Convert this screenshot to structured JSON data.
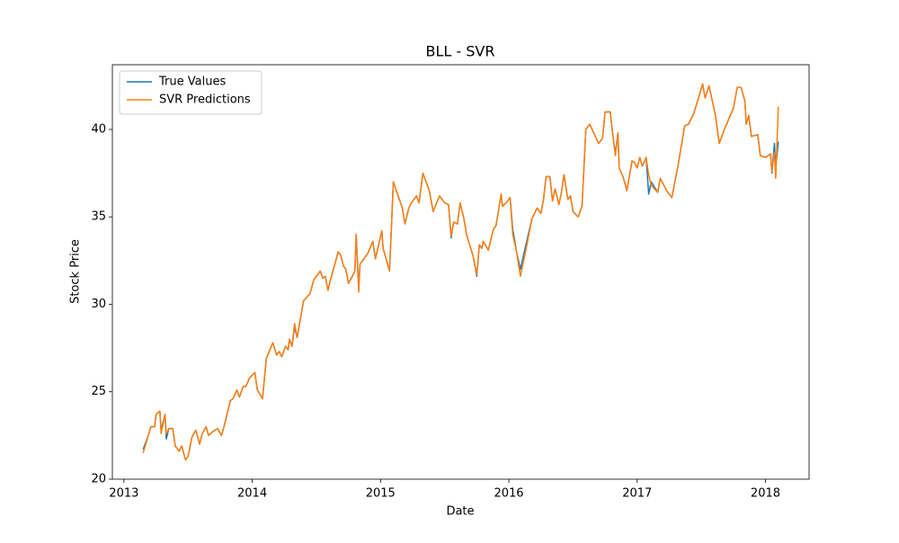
{
  "chart_data": {
    "type": "line",
    "title": "BLL - SVR",
    "x_label": "Date",
    "y_label": "Stock Price",
    "x": [
      2013.15,
      2013.19,
      2013.21,
      2013.24,
      2013.25,
      2013.28,
      2013.29,
      2013.32,
      2013.33,
      2013.35,
      2013.38,
      2013.4,
      2013.43,
      2013.45,
      2013.48,
      2013.5,
      2013.53,
      2013.56,
      2013.59,
      2013.61,
      2013.64,
      2013.66,
      2013.69,
      2013.73,
      2013.76,
      2013.78,
      2013.83,
      2013.85,
      2013.88,
      2013.9,
      2013.93,
      2013.95,
      2013.98,
      2014.02,
      2014.04,
      2014.08,
      2014.11,
      2014.16,
      2014.19,
      2014.21,
      2014.23,
      2014.26,
      2014.28,
      2014.29,
      2014.31,
      2014.33,
      2014.35,
      2014.4,
      2014.45,
      2014.48,
      2014.53,
      2014.55,
      2014.57,
      2014.59,
      2014.61,
      2014.67,
      2014.69,
      2014.71,
      2014.73,
      2014.75,
      2014.78,
      2014.8,
      2014.81,
      2014.83,
      2014.84,
      2014.9,
      2014.94,
      2014.96,
      2015.01,
      2015.02,
      2015.07,
      2015.1,
      2015.17,
      2015.19,
      2015.22,
      2015.24,
      2015.28,
      2015.3,
      2015.33,
      2015.38,
      2015.41,
      2015.46,
      2015.5,
      2015.53,
      2015.55,
      2015.57,
      2015.6,
      2015.62,
      2015.65,
      2015.67,
      2015.69,
      2015.72,
      2015.75,
      2015.77,
      2015.79,
      2015.8,
      2015.84,
      2015.88,
      2015.9,
      2015.94,
      2015.95,
      2015.99,
      2016.01,
      2016.03,
      2016.06,
      2016.09,
      2016.13,
      2016.18,
      2016.22,
      2016.25,
      2016.27,
      2016.29,
      2016.32,
      2016.34,
      2016.36,
      2016.39,
      2016.41,
      2016.43,
      2016.46,
      2016.48,
      2016.5,
      2016.54,
      2016.57,
      2016.6,
      2016.63,
      2016.7,
      2016.73,
      2016.75,
      2016.79,
      2016.81,
      2016.83,
      2016.85,
      2016.86,
      2016.89,
      2016.92,
      2016.96,
      2016.98,
      2017.0,
      2017.02,
      2017.04,
      2017.07,
      2017.09,
      2017.11,
      2017.16,
      2017.18,
      2017.23,
      2017.27,
      2017.32,
      2017.37,
      2017.4,
      2017.44,
      2017.47,
      2017.51,
      2017.53,
      2017.56,
      2017.61,
      2017.64,
      2017.68,
      2017.72,
      2017.75,
      2017.78,
      2017.81,
      2017.84,
      2017.85,
      2017.87,
      2017.89,
      2017.94,
      2017.96,
      2018.0,
      2018.04,
      2018.05,
      2018.07,
      2018.08,
      2018.1
    ],
    "series": [
      {
        "name": "True Values",
        "color": "#1f77b4",
        "values": [
          21.7,
          22.5,
          23.0,
          23.0,
          23.7,
          23.9,
          22.8,
          23.7,
          22.3,
          22.9,
          22.9,
          21.9,
          21.6,
          21.9,
          21.1,
          21.3,
          22.4,
          22.8,
          22.0,
          22.6,
          23.0,
          22.5,
          22.7,
          22.9,
          22.5,
          23.0,
          24.5,
          24.6,
          25.1,
          24.7,
          25.3,
          25.3,
          25.8,
          26.1,
          25.1,
          24.6,
          26.9,
          27.8,
          27.1,
          27.3,
          27.0,
          27.6,
          27.4,
          28.0,
          27.6,
          28.7,
          28.1,
          30.2,
          30.6,
          31.4,
          31.9,
          31.5,
          31.6,
          30.8,
          31.4,
          33.0,
          32.8,
          32.2,
          32.0,
          31.2,
          31.6,
          31.9,
          34.0,
          30.9,
          32.3,
          32.9,
          33.6,
          32.6,
          34.2,
          33.2,
          31.9,
          37.0,
          35.5,
          34.6,
          35.5,
          35.8,
          36.2,
          35.8,
          37.5,
          36.5,
          35.3,
          36.2,
          35.8,
          35.7,
          33.8,
          34.7,
          34.6,
          35.8,
          34.9,
          34.0,
          33.5,
          32.8,
          31.6,
          33.4,
          33.2,
          33.6,
          33.1,
          34.3,
          34.5,
          36.3,
          35.6,
          35.9,
          36.1,
          34.3,
          33.0,
          32.0,
          33.3,
          34.9,
          35.5,
          35.2,
          36.0,
          37.3,
          37.3,
          35.9,
          36.6,
          35.7,
          36.4,
          37.4,
          36.0,
          36.2,
          35.3,
          35.0,
          35.6,
          40.0,
          40.3,
          39.2,
          39.5,
          41.0,
          41.0,
          39.7,
          38.6,
          39.8,
          37.8,
          37.3,
          36.5,
          38.2,
          38.1,
          37.8,
          38.4,
          37.9,
          38.4,
          36.3,
          37.0,
          36.4,
          37.2,
          36.5,
          36.1,
          38.0,
          40.2,
          40.3,
          40.9,
          41.6,
          42.6,
          41.8,
          42.5,
          40.8,
          39.2,
          40.0,
          40.7,
          41.2,
          42.4,
          42.4,
          41.6,
          40.3,
          40.8,
          39.6,
          39.7,
          38.5,
          38.4,
          38.6,
          37.5,
          39.2,
          37.8,
          39.3
        ]
      },
      {
        "name": "SVR Predictions",
        "color": "#ff7f0e",
        "values": [
          21.5,
          22.5,
          23.0,
          23.0,
          23.7,
          23.9,
          22.6,
          23.7,
          22.6,
          22.9,
          22.9,
          21.9,
          21.6,
          21.9,
          21.1,
          21.3,
          22.4,
          22.8,
          22.0,
          22.6,
          23.0,
          22.5,
          22.7,
          22.9,
          22.5,
          23.0,
          24.5,
          24.6,
          25.1,
          24.7,
          25.3,
          25.3,
          25.8,
          26.1,
          25.1,
          24.6,
          26.9,
          27.8,
          27.1,
          27.3,
          27.0,
          27.6,
          27.4,
          28.0,
          27.6,
          28.9,
          28.1,
          30.2,
          30.6,
          31.4,
          31.9,
          31.5,
          31.6,
          30.8,
          31.4,
          33.0,
          32.8,
          32.2,
          32.0,
          31.2,
          31.6,
          31.9,
          34.0,
          30.7,
          32.3,
          32.9,
          33.6,
          32.6,
          34.2,
          33.2,
          31.9,
          37.0,
          35.5,
          34.6,
          35.5,
          35.8,
          36.2,
          35.8,
          37.5,
          36.5,
          35.3,
          36.2,
          35.8,
          35.7,
          33.9,
          34.7,
          34.6,
          35.8,
          34.9,
          34.0,
          33.5,
          32.8,
          31.7,
          33.4,
          33.2,
          33.6,
          33.1,
          34.3,
          34.5,
          36.3,
          35.6,
          35.9,
          36.1,
          34.0,
          33.0,
          31.6,
          33.0,
          34.9,
          35.5,
          35.2,
          36.0,
          37.3,
          37.3,
          35.9,
          36.6,
          35.7,
          36.4,
          37.4,
          36.0,
          36.2,
          35.3,
          35.0,
          35.6,
          40.0,
          40.3,
          39.2,
          39.5,
          41.0,
          41.0,
          39.7,
          38.5,
          39.8,
          37.8,
          37.3,
          36.5,
          38.2,
          38.1,
          37.8,
          38.4,
          37.9,
          38.4,
          37.4,
          36.8,
          36.4,
          37.2,
          36.5,
          36.1,
          38.0,
          40.2,
          40.3,
          40.9,
          41.6,
          42.6,
          41.8,
          42.5,
          40.8,
          39.2,
          40.0,
          40.7,
          41.2,
          42.4,
          42.4,
          41.6,
          40.3,
          40.8,
          39.6,
          39.7,
          38.5,
          38.4,
          38.6,
          37.6,
          38.7,
          37.2,
          41.3
        ]
      }
    ],
    "xlim": [
      2012.91,
      2018.34
    ],
    "xticks": [
      2013,
      2014,
      2015,
      2016,
      2017,
      2018
    ],
    "ylim": [
      20,
      43.7
    ],
    "yticks": [
      20,
      25,
      30,
      35,
      40
    ],
    "grid": false,
    "legend": "upper left"
  }
}
